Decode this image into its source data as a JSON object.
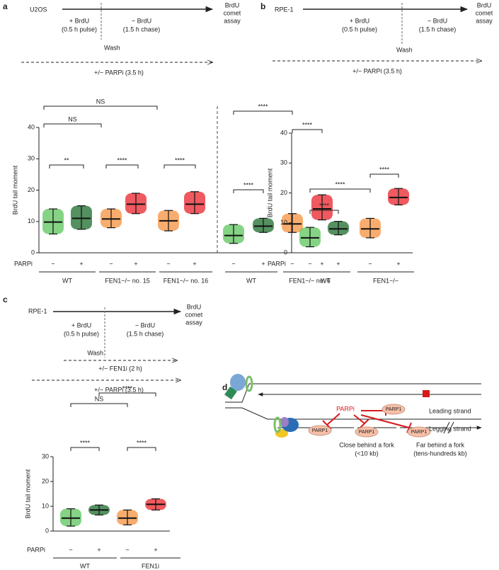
{
  "panel_labels": [
    "a",
    "b",
    "c",
    "d"
  ],
  "schemes": [
    {
      "cell": "U2OS",
      "pulse": [
        "+ BrdU",
        "(0.5 h pulse)"
      ],
      "chase": [
        "− BrdU",
        "(1.5 h chase)"
      ],
      "readout": [
        "BrdU",
        "comet",
        "assay"
      ],
      "wash": "Wash",
      "treatments": [
        "+/− PARPi (3.5 h)"
      ]
    },
    {
      "cell": "RPE-1",
      "pulse": [
        "+ BrdU",
        "(0.5 h pulse)"
      ],
      "chase": [
        "− BrdU",
        "(1.5 h chase)"
      ],
      "readout": [
        "BrdU",
        "comet",
        "assay"
      ],
      "wash": "Wash",
      "treatments": [
        "+/− PARPi (3.5 h)"
      ]
    },
    {
      "cell": "RPE-1",
      "pulse": [
        "+ BrdU",
        "(0.5 h pulse)"
      ],
      "chase": [
        "− BrdU",
        "(1.5 h chase)"
      ],
      "readout": [
        "BrdU",
        "comet",
        "assay"
      ],
      "wash": "Wash",
      "treatments": [
        "+/− FEN1i (2 h)",
        "+/− PARPi (3.5 h)"
      ]
    }
  ],
  "chart_data": [
    {
      "type": "dotplot",
      "ylabel": "BrdU tail moment",
      "ylim": [
        0,
        40
      ],
      "yticks": [
        0,
        10,
        20,
        30,
        40
      ],
      "row_label": "PARPi",
      "categories": [
        "−",
        "+",
        "−",
        "+",
        "−",
        "+",
        "−",
        "+",
        "−",
        "+"
      ],
      "groups": [
        "WT",
        "FEN1−/− no. 15",
        "FEN1−/− no. 16",
        "WT",
        "FEN1−/− no. 6"
      ],
      "values": [
        9.8,
        11,
        10.8,
        15.5,
        10.2,
        15.5,
        5.5,
        8.5,
        9.2,
        14
      ],
      "lower": [
        6,
        7.5,
        8,
        12.5,
        7,
        12.5,
        3,
        6.5,
        6.5,
        10.5
      ],
      "upper": [
        14,
        15,
        14,
        19,
        13.5,
        19.5,
        9,
        11,
        12.5,
        18.5
      ],
      "colors": [
        "#5cc45c",
        "#1b6b2b",
        "#f5923e",
        "#e8232a",
        "#f5923e",
        "#e8232a",
        "#5cc45c",
        "#1b6b2b",
        "#f5923e",
        "#e8232a"
      ],
      "annotations": [
        "NS",
        "NS",
        "**",
        "****",
        "****",
        "****",
        "****",
        "****"
      ]
    },
    {
      "type": "dotplot",
      "ylabel": "BrdU tail moment",
      "ylim": [
        0,
        40
      ],
      "yticks": [
        0,
        10,
        20,
        30,
        40
      ],
      "row_label": "PARPi",
      "categories": [
        "−",
        "+",
        "−",
        "+"
      ],
      "groups": [
        "WT",
        "FEN1−/−"
      ],
      "values": [
        5,
        8,
        8,
        18.5
      ],
      "lower": [
        2,
        6,
        5,
        16
      ],
      "upper": [
        8.5,
        10.5,
        11.5,
        21.5
      ],
      "colors": [
        "#5cc45c",
        "#1b6b2b",
        "#f5923e",
        "#e8232a"
      ],
      "annotations": [
        "****",
        "****",
        "****"
      ]
    },
    {
      "type": "dotplot",
      "ylabel": "BrdU tail moment",
      "ylim": [
        0,
        30
      ],
      "yticks": [
        0,
        10,
        20,
        30
      ],
      "row_label": "PARPi",
      "categories": [
        "−",
        "+",
        "−",
        "+"
      ],
      "groups": [
        "WT",
        "FEN1i"
      ],
      "values": [
        5.2,
        8.5,
        5.2,
        10.8
      ],
      "lower": [
        2,
        6.5,
        2.5,
        8.5
      ],
      "upper": [
        9,
        10.5,
        8.5,
        13
      ],
      "colors": [
        "#5cc45c",
        "#1b6b2b",
        "#f5923e",
        "#e8232a"
      ],
      "annotations": [
        "****",
        "NS",
        "****",
        "****"
      ]
    }
  ],
  "diagram": {
    "inhibitor": "PARPi",
    "protein": "PARP1",
    "leading": "Leading strand",
    "lagging": "Legging strand",
    "close": [
      "Close behind a fork",
      "(<10 kb)"
    ],
    "far": [
      "Far behind a fork",
      "(tens-hundreds kb)"
    ]
  }
}
